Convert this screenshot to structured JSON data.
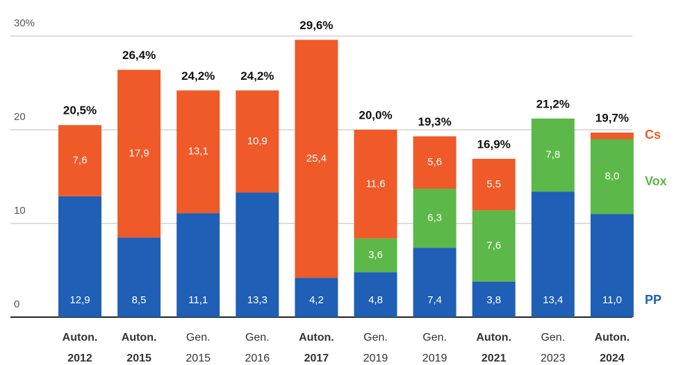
{
  "chart_data": {
    "type": "stacked_bar",
    "categories": [
      [
        "Auton.",
        "2012"
      ],
      [
        "Auton.",
        "2015"
      ],
      [
        "Gen.",
        "2015"
      ],
      [
        "Gen.",
        "2016"
      ],
      [
        "Auton.",
        "2017"
      ],
      [
        "Gen.",
        "2019"
      ],
      [
        "Gen.",
        "2019"
      ],
      [
        "Auton.",
        "2021"
      ],
      [
        "Gen.",
        "2023"
      ],
      [
        "Auton.",
        "2024"
      ]
    ],
    "category_bold": [
      true,
      true,
      false,
      false,
      true,
      false,
      false,
      true,
      false,
      true
    ],
    "series": [
      {
        "name": "PP",
        "color": "#1f5fb5",
        "values": [
          12.9,
          8.5,
          11.1,
          13.3,
          4.2,
          4.8,
          7.4,
          3.8,
          13.4,
          11.0
        ],
        "value_labels": [
          "12,9",
          "8,5",
          "11,1",
          "13,3",
          "4,2",
          "4,8",
          "7,4",
          "3,8",
          "13,4",
          "11,0"
        ]
      },
      {
        "name": "Vox",
        "color": "#5cb848",
        "values": [
          null,
          null,
          null,
          null,
          null,
          3.6,
          6.3,
          7.6,
          7.8,
          8.0
        ],
        "value_labels": [
          null,
          null,
          null,
          null,
          null,
          "3,6",
          "6,3",
          "7,6",
          "7,8",
          "8,0"
        ]
      },
      {
        "name": "Cs",
        "color": "#ef5a28",
        "values": [
          7.6,
          17.9,
          13.1,
          10.9,
          25.4,
          11.6,
          5.6,
          5.5,
          null,
          0.7
        ],
        "value_labels": [
          "7,6",
          "17,9",
          "13,1",
          "10,9",
          "25,4",
          "11,6",
          "5,6",
          "5,5",
          null,
          null
        ]
      }
    ],
    "totals": [
      20.5,
      26.4,
      24.2,
      24.2,
      29.6,
      20.0,
      19.3,
      16.9,
      21.2,
      19.7
    ],
    "total_labels": [
      "20,5%",
      "26,4%",
      "24,2%",
      "24,2%",
      "29,6%",
      "20,0%",
      "19,3%",
      "16,9%",
      "21,2%",
      "19,7%"
    ],
    "ylim": [
      0,
      30
    ],
    "yticks": [
      0,
      10,
      20,
      {
        "value": 30,
        "label": "30%"
      }
    ],
    "grid": true
  }
}
